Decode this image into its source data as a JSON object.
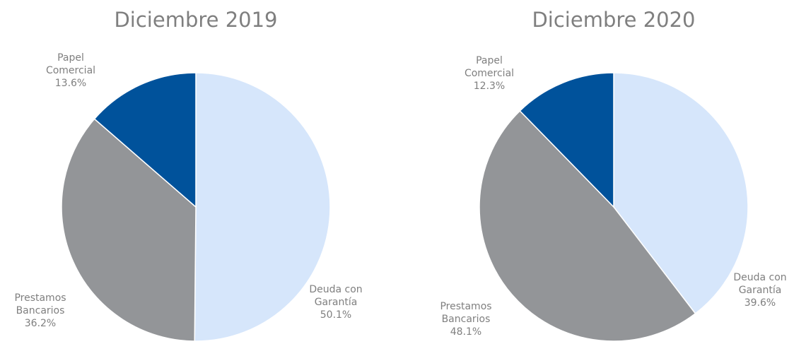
{
  "chart_data": [
    {
      "type": "pie",
      "title": "Diciembre 2019",
      "categories": [
        "Deuda con Garantía",
        "Prestamos Bancarios",
        "Papel Comercial"
      ],
      "values": [
        50.1,
        36.2,
        13.6
      ],
      "value_labels": [
        "50.1%",
        "36.2%",
        "13.6%"
      ],
      "colors": [
        "#d6e6fb",
        "#939598",
        "#00529b"
      ]
    },
    {
      "type": "pie",
      "title": "Diciembre 2020",
      "categories": [
        "Deuda con Garantía",
        "Prestamos Bancarios",
        "Papel Comercial"
      ],
      "values": [
        39.6,
        48.1,
        12.3
      ],
      "value_labels": [
        "39.6%",
        "48.1%",
        "12.3%"
      ],
      "colors": [
        "#d6e6fb",
        "#939598",
        "#00529b"
      ]
    }
  ]
}
